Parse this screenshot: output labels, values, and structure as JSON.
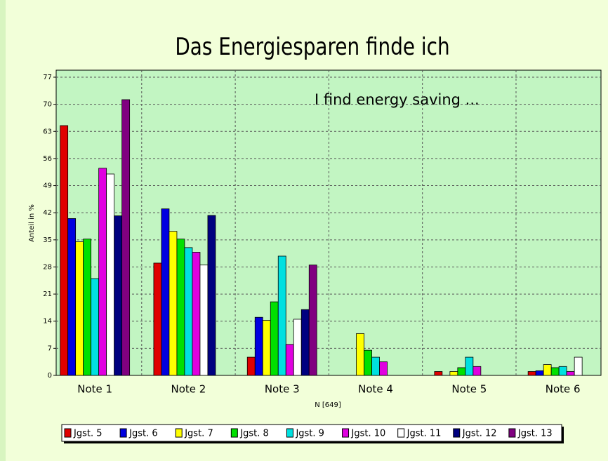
{
  "chart_data": {
    "type": "bar",
    "title": "Das Energiesparen finde ich",
    "annotation": "I find energy saving ...",
    "ylabel": "Anteil in %",
    "xlabel": "N [649]",
    "categories": [
      "Note 1",
      "Note 2",
      "Note 3",
      "Note 4",
      "Note 5",
      "Note 6"
    ],
    "series": [
      {
        "name": "Jgst. 5",
        "color": "#e00000",
        "values": [
          64.5,
          29,
          4.7,
          0,
          1,
          1
        ]
      },
      {
        "name": "Jgst. 6",
        "color": "#0000e0",
        "values": [
          40.5,
          43,
          15,
          0,
          0,
          1.2
        ]
      },
      {
        "name": "Jgst. 7",
        "color": "#ffff00",
        "values": [
          34.5,
          37.2,
          14.2,
          10.8,
          1,
          2.8
        ]
      },
      {
        "name": "Jgst. 8",
        "color": "#00e000",
        "values": [
          35.2,
          35.2,
          19,
          6.5,
          2,
          2
        ]
      },
      {
        "name": "Jgst. 9",
        "color": "#00e0e0",
        "values": [
          25,
          33,
          30.8,
          4.7,
          4.7,
          2.3
        ]
      },
      {
        "name": "Jgst. 10",
        "color": "#e000e0",
        "values": [
          53.5,
          31.8,
          8,
          3.5,
          2.3,
          1
        ]
      },
      {
        "name": "Jgst. 11",
        "color": "#ffffff",
        "values": [
          52,
          28.5,
          14.5,
          0,
          0,
          4.7
        ]
      },
      {
        "name": "Jgst. 12",
        "color": "#000080",
        "values": [
          41.2,
          41.3,
          17,
          0,
          0,
          0
        ]
      },
      {
        "name": "Jgst. 13",
        "color": "#800080",
        "values": [
          71.2,
          0,
          28.5,
          0,
          0,
          0
        ]
      }
    ],
    "ylim": [
      0,
      77
    ],
    "yticks": [
      0,
      7,
      14,
      21,
      28,
      35,
      42,
      49,
      56,
      63,
      70,
      77
    ],
    "grid": true,
    "legend": "bottom"
  }
}
